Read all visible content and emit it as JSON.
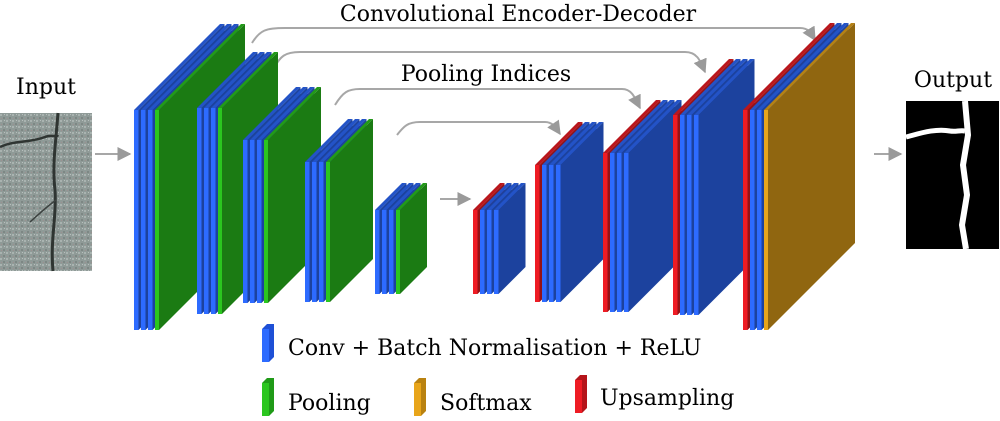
{
  "labels": {
    "input": "Input",
    "output": "Output",
    "encoder_decoder": "Convolutional Encoder-Decoder",
    "pooling_indices": "Pooling Indices"
  },
  "legend": [
    {
      "label": "Conv + Batch Normalisation + ReLU",
      "color": "#2d6bff"
    },
    {
      "label": "Pooling",
      "color": "#2bc61f"
    },
    {
      "label": "Softmax",
      "color": "#e8a51a"
    },
    {
      "label": "Upsampling",
      "color": "#ee1c24"
    }
  ],
  "colors": {
    "conv": "#2d6bff",
    "pooling": "#2bc61f",
    "softmax": "#e8a51a",
    "upsampling": "#ee1c24",
    "arrow": "#a7a7a7"
  }
}
